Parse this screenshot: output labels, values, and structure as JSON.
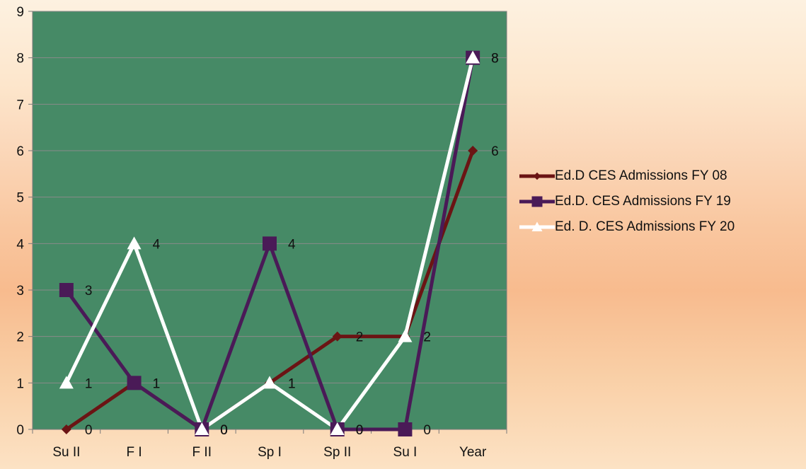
{
  "chart_data": {
    "type": "line",
    "categories": [
      "Su II",
      "F I",
      "F II",
      "Sp I",
      "Sp II",
      "Su I",
      "Year"
    ],
    "ylim": [
      0,
      9
    ],
    "yticks": [
      "0",
      "1",
      "2",
      "3",
      "4",
      "5",
      "6",
      "7",
      "8",
      "9"
    ],
    "grid": true,
    "plot_background": "#468a66",
    "legend_position": "right",
    "series": [
      {
        "name": "Ed.D CES Admissions FY 08",
        "values": [
          0,
          1,
          0,
          1,
          2,
          2,
          6
        ],
        "labels": [
          "0",
          "1",
          "0",
          "1",
          "2",
          "2",
          "6"
        ],
        "color": "#6b1414",
        "marker": "diamond"
      },
      {
        "name": "Ed.D. CES  Admissions FY 19",
        "values": [
          3,
          1,
          0,
          4,
          0,
          0,
          8
        ],
        "labels": [
          "3",
          "1",
          "0",
          "4",
          "0",
          "0",
          "8"
        ],
        "color": "#4a1a57",
        "marker": "square"
      },
      {
        "name": "Ed. D. CES  Admissions FY 20",
        "values": [
          1,
          4,
          0,
          1,
          0,
          2,
          8
        ],
        "labels": [
          "1",
          "4",
          "0",
          "1",
          "0",
          "2",
          "8"
        ],
        "color": "#ffffff",
        "marker": "triangle"
      }
    ]
  }
}
